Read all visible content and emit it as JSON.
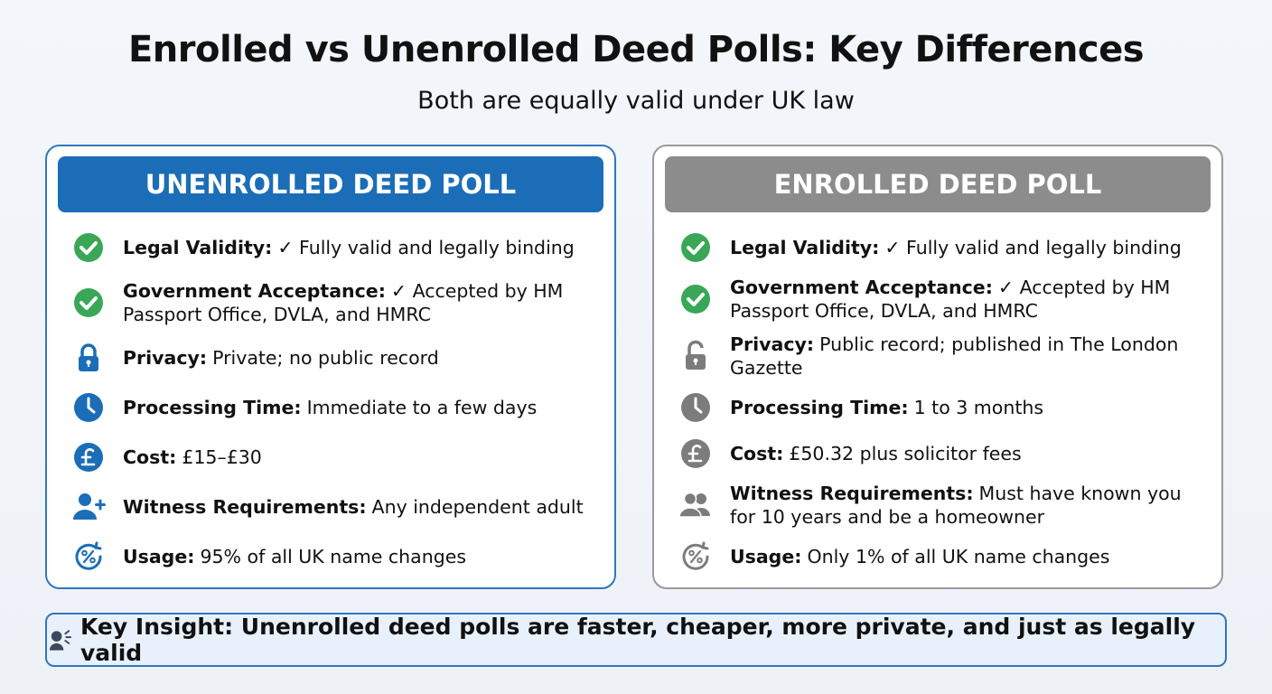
{
  "title": "Enrolled vs Unenrolled Deed Polls: Key Differences",
  "subtitle": "Both are equally valid under UK law",
  "cards": [
    {
      "header": "UNENROLLED DEED POLL",
      "items": [
        {
          "label": "Legal Validity:",
          "text": "✓ Fully valid and legally binding"
        },
        {
          "label": "Government Acceptance:",
          "text": "✓ Accepted by HM Passport Office, DVLA, and HMRC"
        },
        {
          "label": "Privacy:",
          "text": "Private; no public record"
        },
        {
          "label": "Processing Time:",
          "text": "Immediate to a few days"
        },
        {
          "label": "Cost:",
          "text": "£15–£30"
        },
        {
          "label": "Witness Requirements:",
          "text": "Any independent adult"
        },
        {
          "label": "Usage:",
          "text": "95% of all UK name changes"
        }
      ]
    },
    {
      "header": "ENROLLED DEED POLL",
      "items": [
        {
          "label": "Legal Validity:",
          "text": "✓ Fully valid and legally binding"
        },
        {
          "label": "Government Acceptance:",
          "text": "✓ Accepted by HM Passport Office, DVLA, and HMRC"
        },
        {
          "label": "Privacy:",
          "text": "Public record; published in The London Gazette"
        },
        {
          "label": "Processing Time:",
          "text": "1 to 3 months"
        },
        {
          "label": "Cost:",
          "text": "£50.32 plus solicitor fees"
        },
        {
          "label": "Witness Requirements:",
          "text": "Must have known you for 10 years and be a homeowner"
        },
        {
          "label": "Usage:",
          "text": "Only 1% of all UK name changes"
        }
      ]
    }
  ],
  "insight": "Key Insight: Unenrolled deed polls are faster, cheaper, more private, and just as legally valid"
}
